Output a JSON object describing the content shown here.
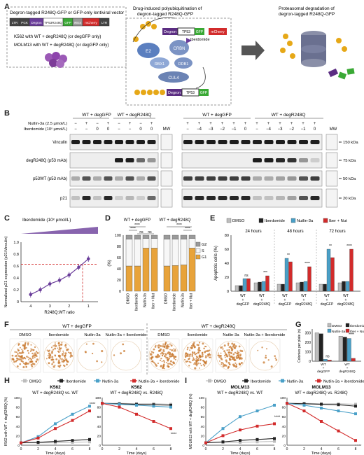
{
  "panelA": {
    "letter": "A",
    "vectorTitle": "Degron-tagged R248Q-GFP or GFP-only lentiviral vector",
    "construct": [
      "LTR",
      "PGK",
      "Degron",
      "TP53R248Q",
      "GFP",
      "IRES",
      "mCherry",
      "LTR"
    ],
    "lines": [
      "K562 with WT + degR248Q (or degGFP only)",
      "MOLM13 with WT + degR248Q (or degGFP only)"
    ],
    "stepTitle": "Drug-induced polyubiquitination of degron-tagged R248Q-GFP",
    "complex": [
      "E2",
      "RBX1",
      "CRBN",
      "DDB1",
      "CUL4",
      "Iberdomide",
      "Ub"
    ],
    "finalTitle": "Proteasomal degradation of degron-tagged R248Q-GFP"
  },
  "panelB": {
    "letter": "B",
    "groupLeft": [
      "WT + degGFP",
      "WT + degR248Q"
    ],
    "groupRight": [
      "WT + degGFP",
      "WT + degR248Q"
    ],
    "rowLabels": [
      "Nutlin-3a (2.5 µmol/L)",
      "Iberdomide (10ˣ µmol/L)"
    ],
    "nutlinLeft": [
      "−",
      "+",
      "−",
      "+",
      "−",
      "+",
      "−",
      "+"
    ],
    "iberLeft": [
      "−",
      "−",
      "0",
      "0",
      "−",
      "−",
      "0",
      "0"
    ],
    "nutlinRight": [
      "+",
      "+",
      "+",
      "+",
      "+",
      "+",
      "+",
      "+",
      "+",
      "+",
      "+",
      "+"
    ],
    "iberRight": [
      "−",
      "−4",
      "−3",
      "−2",
      "−1",
      "0",
      "−",
      "−4",
      "−3",
      "−2",
      "−1",
      "0"
    ],
    "mw": "MW",
    "blots": [
      "Vinculin",
      "degR248Q (p53 mAb)",
      "p53WT (p53 mAb)",
      "p21"
    ],
    "kda": [
      "150 kDa",
      "75 kDa",
      "50 kDa",
      "20 kDa"
    ]
  },
  "panelC": {
    "letter": "C",
    "title": "Iberdomide (10ˣ µmol/L)",
    "ylabel": "Normalized p21 expression (p21/Vinculin)",
    "xlabel": "R248Q:WT ratio",
    "xticks": [
      "4",
      "3",
      "2",
      "1"
    ],
    "yticks": [
      "0",
      "0.2",
      "0.4",
      "0.6",
      "0.8",
      "1.0"
    ]
  },
  "panelD": {
    "letter": "D",
    "groups": [
      "WT + degGFP",
      "WT + degR248Q"
    ],
    "sig": [
      "****",
      "****",
      "ns",
      "ns",
      "****",
      "****"
    ],
    "ylabel": "(%)",
    "yticks": [
      "0",
      "20",
      "40",
      "60",
      "80",
      "100"
    ],
    "categories": [
      "DMSO",
      "Iberdomide",
      "Nutlin-3a",
      "Iber + Nut"
    ],
    "legend": [
      "G2",
      "S",
      "G1"
    ]
  },
  "panelE": {
    "letter": "E",
    "legend": [
      "DMSO",
      "Iberdomide",
      "Nutlin-3a",
      "Iber + Nut"
    ],
    "times": [
      "24 hours",
      "48 hours",
      "72 hours"
    ],
    "ylabel": "Apoptotic cells (%)",
    "yticks": [
      "0",
      "20",
      "40",
      "60",
      "80"
    ],
    "xgroups": [
      "WT + degGFP",
      "WT + degR248Q"
    ],
    "sig": [
      "ns",
      "***",
      "**",
      "****",
      "**",
      "****"
    ]
  },
  "panelF": {
    "letter": "F",
    "groups": [
      "WT + degGFP",
      "WT + degR248Q"
    ],
    "wells": [
      "DMSO",
      "Iberdomide",
      "Nutlin-3a",
      "Nutlin-3a + Iberdomide"
    ]
  },
  "panelG": {
    "letter": "G",
    "legend": [
      "DMSO",
      "Iberdomide",
      "Nutlin-3a",
      "Iber + Nut"
    ],
    "ylabel": "Colonies per plate (n)",
    "yticks": [
      "0",
      "100",
      "200",
      "300"
    ],
    "xgroups": [
      "WT + degGFP",
      "WT + degR248Q"
    ],
    "sig": [
      "ns",
      "****"
    ]
  },
  "panelH": {
    "letter": "H",
    "legend": [
      "DMSO",
      "Iberdomide",
      "Nutlin-3a",
      "Nutlin-3a + iberdomide"
    ],
    "left": {
      "title": "K562",
      "subtitle": "WT + degR248Q vs. WT"
    },
    "right": {
      "title": "K562",
      "subtitle": "WT + degR248Q vs. R248Q"
    },
    "ylabel": "K562 with WT + degR248Q (%)",
    "xlabel": "Time (days)",
    "xticks": [
      "0",
      "2",
      "4",
      "6",
      "8"
    ],
    "yticks": [
      "0",
      "10",
      "20",
      "30",
      "40",
      "50",
      "60",
      "70",
      "80",
      "90",
      "100"
    ],
    "sig": "****"
  },
  "panelI": {
    "letter": "I",
    "legend": [
      "DMSO",
      "Iberdomide",
      "Nutlin-3a",
      "Nutlin-3a + iberdomide"
    ],
    "left": {
      "title": "MOLM13",
      "subtitle": "WT + degR248Q vs. WT"
    },
    "right": {
      "title": "MOLM13",
      "subtitle": "WT + degR248Q vs. R248Q"
    },
    "ylabel": "MOLM13 with WT + degR248Q (%)",
    "xlabel": "Time (days)",
    "xticks": [
      "0",
      "2",
      "4",
      "6",
      "8"
    ],
    "yticks": [
      "0",
      "10",
      "20",
      "30",
      "40",
      "50",
      "60",
      "70",
      "80",
      "90",
      "100"
    ],
    "sig": "****"
  },
  "colors": {
    "dmso": "#bdbdbd",
    "iber": "#222222",
    "nut": "#4aa0c8",
    "combo": "#d22b2b",
    "purple": "#6a3d9a",
    "gfp": "#3aa935"
  },
  "chart_data": [
    {
      "panel": "C",
      "type": "scatter",
      "x": [
        4,
        3.5,
        3,
        2.5,
        2,
        1.5,
        1
      ],
      "y": [
        0.12,
        0.2,
        0.3,
        0.36,
        0.45,
        0.58,
        0.72
      ]
    },
    {
      "panel": "D",
      "type": "bar",
      "categories": [
        "DMSO",
        "Iberdomide",
        "Nutlin-3a",
        "Iber + Nut"
      ],
      "series": [
        {
          "group": "WT + degGFP",
          "G1": [
            45,
            45,
            77,
            77
          ],
          "S": [
            48,
            48,
            17,
            17
          ],
          "G2": [
            7,
            7,
            6,
            6
          ]
        },
        {
          "group": "WT + degR248Q",
          "G1": [
            45,
            46,
            47,
            77
          ],
          "S": [
            48,
            47,
            46,
            17
          ],
          "G2": [
            7,
            7,
            7,
            6
          ]
        }
      ]
    },
    {
      "panel": "E",
      "type": "bar",
      "times": [
        "24 hours",
        "48 hours",
        "72 hours"
      ],
      "series": [
        {
          "name": "DMSO",
          "values": [
            [
              8,
              12
            ],
            [
              10,
              12
            ],
            [
              10,
              12
            ]
          ]
        },
        {
          "name": "Iberdomide",
          "values": [
            [
              8,
              13
            ],
            [
              10,
              13
            ],
            [
              10,
              14
            ]
          ]
        },
        {
          "name": "Nutlin-3a",
          "values": [
            [
              18,
              14
            ],
            [
              47,
              14
            ],
            [
              60,
              14
            ]
          ]
        },
        {
          "name": "Iber + Nut",
          "values": [
            [
              18,
              22
            ],
            [
              42,
              35
            ],
            [
              48,
              60
            ]
          ]
        }
      ]
    },
    {
      "panel": "G",
      "type": "bar",
      "categories": [
        "WT + degGFP",
        "WT + degR248Q"
      ],
      "series": [
        {
          "name": "DMSO",
          "values": [
            300,
            265
          ]
        },
        {
          "name": "Iberdomide",
          "values": [
            290,
            255
          ]
        },
        {
          "name": "Nutlin-3a",
          "values": [
            20,
            240
          ]
        },
        {
          "name": "Iber + Nut",
          "values": [
            12,
            30
          ]
        }
      ]
    },
    {
      "panel": "H-left",
      "type": "line",
      "x": [
        0,
        2,
        4,
        6,
        8
      ],
      "series": [
        {
          "name": "DMSO",
          "values": [
            5,
            5,
            5,
            6,
            7
          ]
        },
        {
          "name": "Iberdomide",
          "values": [
            5,
            6,
            8,
            10,
            12
          ]
        },
        {
          "name": "Nutlin-3a",
          "values": [
            5,
            18,
            45,
            65,
            82
          ]
        },
        {
          "name": "Nutlin-3a + iberdomide",
          "values": [
            5,
            15,
            35,
            52,
            72
          ]
        }
      ]
    },
    {
      "panel": "H-right",
      "type": "line",
      "x": [
        0,
        2,
        4,
        6,
        8
      ],
      "series": [
        {
          "name": "DMSO",
          "values": [
            88,
            88,
            87,
            87,
            86
          ]
        },
        {
          "name": "Iberdomide",
          "values": [
            88,
            87,
            86,
            85,
            84
          ]
        },
        {
          "name": "Nutlin-3a",
          "values": [
            88,
            86,
            84,
            82,
            80
          ]
        },
        {
          "name": "Nutlin-3a + iberdomide",
          "values": [
            88,
            80,
            65,
            50,
            35
          ]
        }
      ]
    },
    {
      "panel": "I-left",
      "type": "line",
      "x": [
        0,
        2,
        4,
        6,
        8
      ],
      "series": [
        {
          "name": "DMSO",
          "values": [
            5,
            6,
            6,
            7,
            8
          ]
        },
        {
          "name": "Iberdomide",
          "values": [
            5,
            7,
            10,
            12,
            14
          ]
        },
        {
          "name": "Nutlin-3a",
          "values": [
            5,
            35,
            60,
            72,
            84
          ]
        },
        {
          "name": "Nutlin-3a + iberdomide",
          "values": [
            5,
            20,
            32,
            40,
            45
          ]
        }
      ]
    },
    {
      "panel": "I-right",
      "type": "line",
      "x": [
        0,
        2,
        4,
        6,
        8
      ],
      "series": [
        {
          "name": "DMSO",
          "values": [
            88,
            88,
            87,
            87,
            86
          ]
        },
        {
          "name": "Iberdomide",
          "values": [
            88,
            87,
            86,
            85,
            82
          ]
        },
        {
          "name": "Nutlin-3a",
          "values": [
            88,
            84,
            78,
            72,
            66
          ]
        },
        {
          "name": "Nutlin-3a + iberdomide",
          "values": [
            88,
            72,
            50,
            30,
            10
          ]
        }
      ]
    }
  ]
}
